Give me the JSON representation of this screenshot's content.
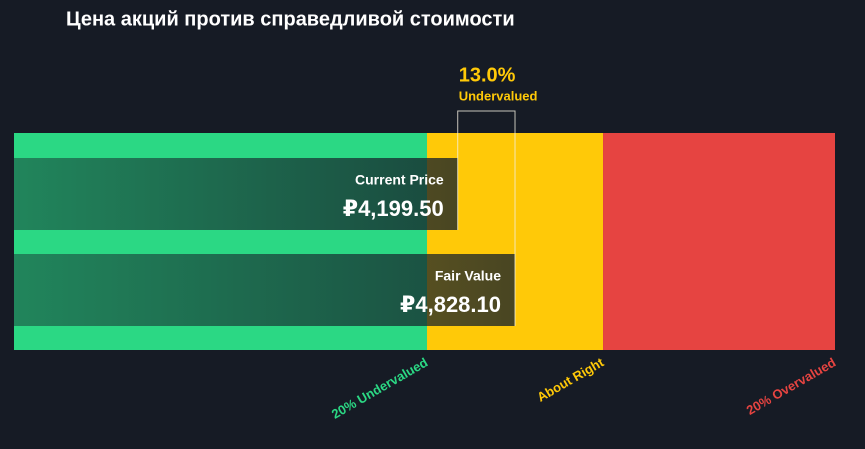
{
  "chart_data": {
    "type": "valuation",
    "title": "Цена акций против справедливой стоимости",
    "xlim": [
      -669,
      8339
    ],
    "zones": [
      {
        "name": "20% Undervalued",
        "color": "#2bd884",
        "range": [
          -669,
          3862.48
        ]
      },
      {
        "name": "About Right",
        "color": "#ffc908",
        "range": [
          3862.48,
          5793.72
        ]
      },
      {
        "name": "20% Overvalued",
        "color": "#e64441",
        "range": [
          5793.72,
          8339
        ]
      }
    ],
    "bars": [
      {
        "name": "Current Price",
        "value": 4199.5,
        "value_label": "₽4,199.50"
      },
      {
        "name": "Fair Value",
        "value": 4828.1,
        "value_label": "₽4,828.10"
      }
    ],
    "difference": {
      "value": 13.0,
      "value_label": "13.0%",
      "status": "Undervalued",
      "color": "#ffc908"
    }
  }
}
